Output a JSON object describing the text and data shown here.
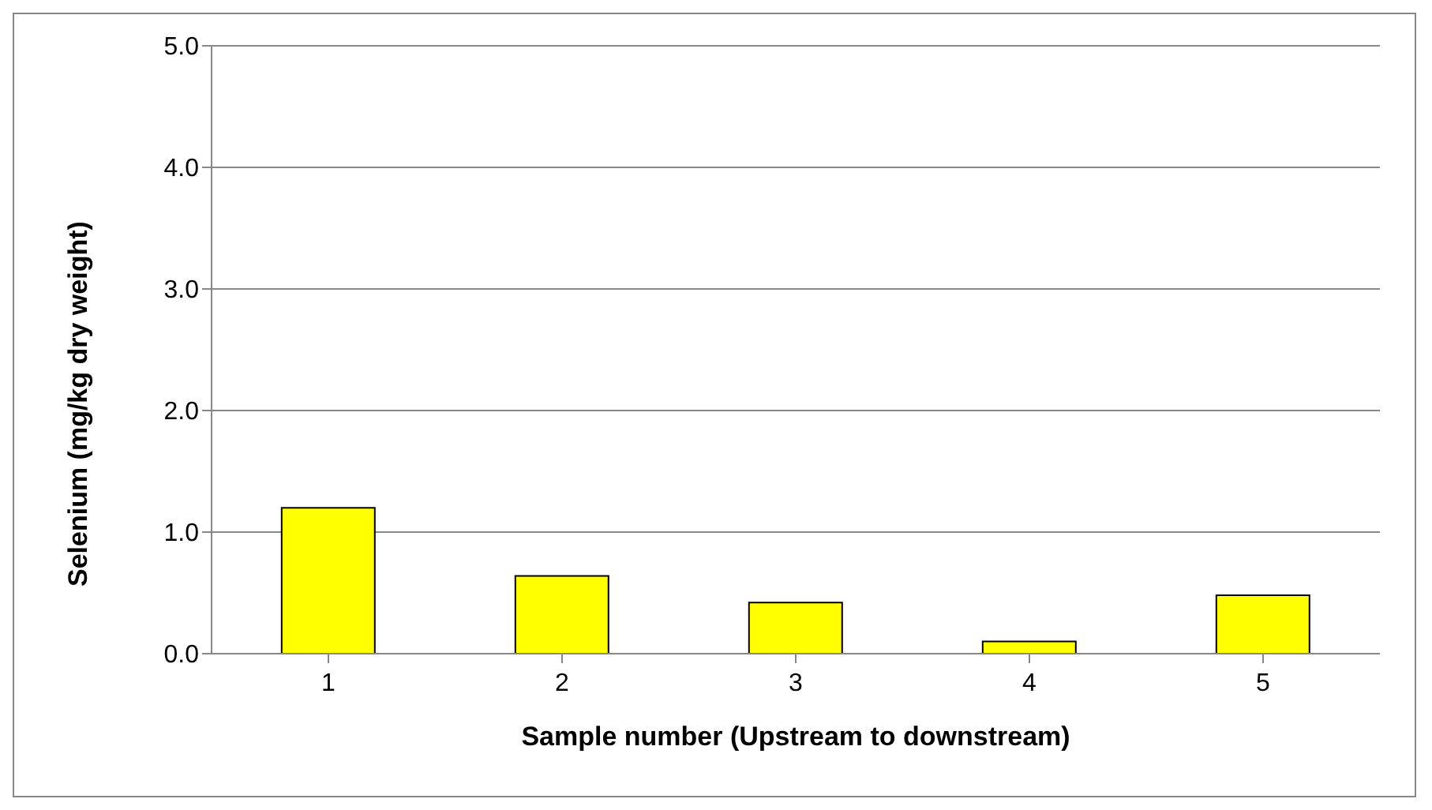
{
  "chart_data": {
    "type": "bar",
    "xlabel": "Sample number (Upstream to downstream)",
    "ylabel": "Selenium (mg/kg dry weight)",
    "categories": [
      "1",
      "2",
      "3",
      "4",
      "5"
    ],
    "values": [
      1.2,
      0.64,
      0.42,
      0.1,
      0.48
    ],
    "color": "#ffff00",
    "ylim": [
      0,
      5
    ],
    "yticks": [
      {
        "value": 0,
        "label": "0.0"
      },
      {
        "value": 1,
        "label": "1.0"
      },
      {
        "value": 2,
        "label": "2.0"
      },
      {
        "value": 3,
        "label": "3.0"
      },
      {
        "value": 4,
        "label": "4.0"
      },
      {
        "value": 5,
        "label": "5.0"
      }
    ],
    "grid": "y"
  }
}
